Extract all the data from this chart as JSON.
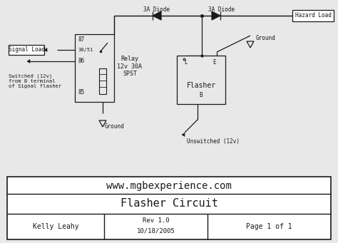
{
  "bg_color": "#e8e8e8",
  "line_color": "#1a1a1a",
  "title_box_url": "www.mgbexperience.com",
  "title_box_title": "Flasher Circuit",
  "title_box_author": "Kelly Leahy",
  "title_box_rev": "Rev 1.0",
  "title_box_date": "10/18/2005",
  "title_box_page": "Page 1 of 1",
  "label_3a_diode_left": "3A Diode",
  "label_3a_diode_right": "3A Diode",
  "label_hazard_load": "Hazard Load",
  "label_signal_load": "Signal Load",
  "label_relay": "Relay\n12v 30A\nSPST",
  "label_switched": "Switched (12v)\nfrom B terminal\nof Signal flasher",
  "label_ground1": "Ground",
  "label_ground2": "Ground",
  "label_unswitched": "Unswitched (12v)",
  "label_flasher": "Flasher",
  "relay_pins": [
    "87",
    "30/51",
    "86",
    "85"
  ],
  "flasher_pins": [
    "L",
    "E",
    "B"
  ],
  "fig_w": 4.74,
  "fig_h": 3.41,
  "dpi": 100
}
